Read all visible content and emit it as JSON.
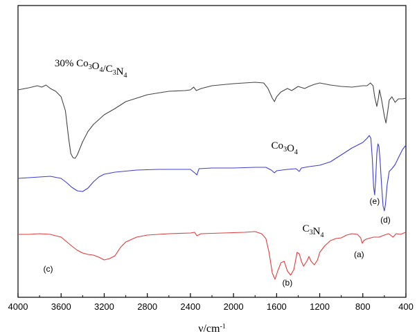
{
  "chart_data": {
    "type": "line",
    "xlabel": {
      "base": "ν/cm",
      "sup": "-1"
    },
    "ylabel": "",
    "xlim": [
      4000,
      400
    ],
    "x_reversed": true,
    "y_axis_labels": false,
    "grid": false,
    "xticks": [
      4000,
      3600,
      3200,
      2800,
      2400,
      2000,
      1600,
      1200,
      800,
      400
    ],
    "series": [
      {
        "key": "composite",
        "label_parts": [
          {
            "t": "30% Co"
          },
          {
            "t": "3",
            "sub": true
          },
          {
            "t": "O"
          },
          {
            "t": "4",
            "sub": true
          },
          {
            "t": "/C"
          },
          {
            "t": "3",
            "sub": true
          },
          {
            "t": "N"
          },
          {
            "t": "4",
            "sub": true
          }
        ],
        "label_at": [
          3660,
          96
        ],
        "color": "#444444",
        "points": [
          [
            4000,
            130
          ],
          [
            3900,
            127
          ],
          [
            3820,
            124
          ],
          [
            3780,
            126
          ],
          [
            3740,
            123
          ],
          [
            3700,
            128
          ],
          [
            3650,
            132
          ],
          [
            3600,
            140
          ],
          [
            3560,
            160
          ],
          [
            3530,
            200
          ],
          [
            3510,
            222
          ],
          [
            3490,
            228
          ],
          [
            3470,
            229
          ],
          [
            3450,
            224
          ],
          [
            3400,
            205
          ],
          [
            3350,
            190
          ],
          [
            3300,
            180
          ],
          [
            3200,
            166
          ],
          [
            3100,
            157
          ],
          [
            3000,
            147
          ],
          [
            2800,
            137
          ],
          [
            2600,
            132
          ],
          [
            2450,
            131
          ],
          [
            2400,
            130
          ],
          [
            2370,
            126
          ],
          [
            2345,
            131
          ],
          [
            2300,
            128
          ],
          [
            2200,
            124
          ],
          [
            2000,
            121
          ],
          [
            1800,
            119
          ],
          [
            1720,
            120
          ],
          [
            1680,
            128
          ],
          [
            1640,
            142
          ],
          [
            1620,
            147
          ],
          [
            1600,
            140
          ],
          [
            1560,
            133
          ],
          [
            1500,
            128
          ],
          [
            1460,
            131
          ],
          [
            1400,
            125
          ],
          [
            1340,
            128
          ],
          [
            1300,
            125
          ],
          [
            1250,
            122
          ],
          [
            1200,
            120
          ],
          [
            1100,
            123
          ],
          [
            1000,
            125
          ],
          [
            900,
            126
          ],
          [
            800,
            124
          ],
          [
            760,
            124
          ],
          [
            730,
            120
          ],
          [
            705,
            124
          ],
          [
            690,
            140
          ],
          [
            670,
            154
          ],
          [
            655,
            142
          ],
          [
            645,
            130
          ],
          [
            625,
            145
          ],
          [
            600,
            168
          ],
          [
            585,
            178
          ],
          [
            570,
            162
          ],
          [
            555,
            145
          ],
          [
            530,
            140
          ],
          [
            500,
            148
          ],
          [
            470,
            143
          ],
          [
            430,
            143
          ],
          [
            400,
            142
          ]
        ]
      },
      {
        "key": "co3o4",
        "label_parts": [
          {
            "t": "Co"
          },
          {
            "t": "3",
            "sub": true
          },
          {
            "t": "O"
          },
          {
            "t": "4",
            "sub": true
          }
        ],
        "label_at": [
          1650,
          215
        ],
        "color": "#3c3cd6",
        "points": [
          [
            4000,
            258
          ],
          [
            3800,
            256
          ],
          [
            3700,
            255
          ],
          [
            3600,
            258
          ],
          [
            3550,
            264
          ],
          [
            3500,
            271
          ],
          [
            3450,
            276
          ],
          [
            3400,
            277
          ],
          [
            3350,
            272
          ],
          [
            3300,
            263
          ],
          [
            3250,
            256
          ],
          [
            3200,
            252
          ],
          [
            3100,
            249
          ],
          [
            2900,
            246
          ],
          [
            2700,
            245
          ],
          [
            2500,
            245
          ],
          [
            2400,
            245
          ],
          [
            2360,
            250
          ],
          [
            2340,
            253
          ],
          [
            2320,
            244
          ],
          [
            2200,
            243
          ],
          [
            2000,
            243
          ],
          [
            1800,
            242
          ],
          [
            1700,
            242
          ],
          [
            1650,
            246
          ],
          [
            1620,
            250
          ],
          [
            1600,
            247
          ],
          [
            1500,
            245
          ],
          [
            1420,
            244
          ],
          [
            1390,
            248
          ],
          [
            1370,
            243
          ],
          [
            1300,
            241
          ],
          [
            1200,
            239
          ],
          [
            1100,
            234
          ],
          [
            1000,
            224
          ],
          [
            900,
            214
          ],
          [
            800,
            206
          ],
          [
            760,
            200
          ],
          [
            740,
            196
          ],
          [
            725,
            200
          ],
          [
            712,
            230
          ],
          [
            700,
            270
          ],
          [
            690,
            282
          ],
          [
            680,
            258
          ],
          [
            670,
            222
          ],
          [
            660,
            208
          ],
          [
            650,
            212
          ],
          [
            640,
            232
          ],
          [
            625,
            270
          ],
          [
            612,
            298
          ],
          [
            600,
            305
          ],
          [
            590,
            296
          ],
          [
            575,
            268
          ],
          [
            555,
            248
          ],
          [
            530,
            244
          ],
          [
            500,
            238
          ],
          [
            460,
            225
          ],
          [
            430,
            216
          ],
          [
            400,
            210
          ]
        ]
      },
      {
        "key": "c3n4",
        "label_parts": [
          {
            "t": "C"
          },
          {
            "t": "3",
            "sub": true
          },
          {
            "t": "N"
          },
          {
            "t": "4",
            "sub": true
          }
        ],
        "label_at": [
          1360,
          335
        ],
        "color": "#e23a3a",
        "points": [
          [
            4000,
            339
          ],
          [
            3900,
            339
          ],
          [
            3800,
            338
          ],
          [
            3700,
            339
          ],
          [
            3600,
            343
          ],
          [
            3500,
            356
          ],
          [
            3450,
            362
          ],
          [
            3400,
            366
          ],
          [
            3350,
            368
          ],
          [
            3300,
            369
          ],
          [
            3250,
            372
          ],
          [
            3200,
            376
          ],
          [
            3150,
            374
          ],
          [
            3100,
            370
          ],
          [
            3050,
            358
          ],
          [
            3000,
            350
          ],
          [
            2900,
            343
          ],
          [
            2800,
            340
          ],
          [
            2600,
            338
          ],
          [
            2400,
            337
          ],
          [
            2360,
            336
          ],
          [
            2340,
            341
          ],
          [
            2300,
            338
          ],
          [
            2100,
            337
          ],
          [
            1900,
            336
          ],
          [
            1800,
            335
          ],
          [
            1740,
            338
          ],
          [
            1700,
            345
          ],
          [
            1670,
            365
          ],
          [
            1640,
            395
          ],
          [
            1615,
            404
          ],
          [
            1590,
            392
          ],
          [
            1560,
            380
          ],
          [
            1530,
            378
          ],
          [
            1500,
            392
          ],
          [
            1470,
            398
          ],
          [
            1440,
            390
          ],
          [
            1410,
            365
          ],
          [
            1390,
            367
          ],
          [
            1370,
            378
          ],
          [
            1350,
            385
          ],
          [
            1320,
            378
          ],
          [
            1300,
            371
          ],
          [
            1280,
            378
          ],
          [
            1250,
            383
          ],
          [
            1220,
            376
          ],
          [
            1200,
            365
          ],
          [
            1150,
            355
          ],
          [
            1100,
            348
          ],
          [
            1050,
            345
          ],
          [
            1000,
            344
          ],
          [
            950,
            340
          ],
          [
            900,
            338
          ],
          [
            850,
            339
          ],
          [
            820,
            344
          ],
          [
            805,
            352
          ],
          [
            790,
            348
          ],
          [
            770,
            346
          ],
          [
            750,
            345
          ],
          [
            700,
            343
          ],
          [
            650,
            343
          ],
          [
            600,
            340
          ],
          [
            560,
            338
          ],
          [
            520,
            343
          ],
          [
            490,
            338
          ],
          [
            450,
            339
          ],
          [
            420,
            337
          ],
          [
            400,
            336
          ]
        ]
      }
    ],
    "annotations": [
      {
        "text": "(a)",
        "at": [
          835,
          372
        ]
      },
      {
        "text": "(b)",
        "at": [
          1500,
          413
        ]
      },
      {
        "text": "(c)",
        "at": [
          3720,
          393
        ]
      },
      {
        "text": "(d)",
        "at": [
          590,
          322
        ]
      },
      {
        "text": "(e)",
        "at": [
          690,
          295
        ]
      }
    ]
  }
}
